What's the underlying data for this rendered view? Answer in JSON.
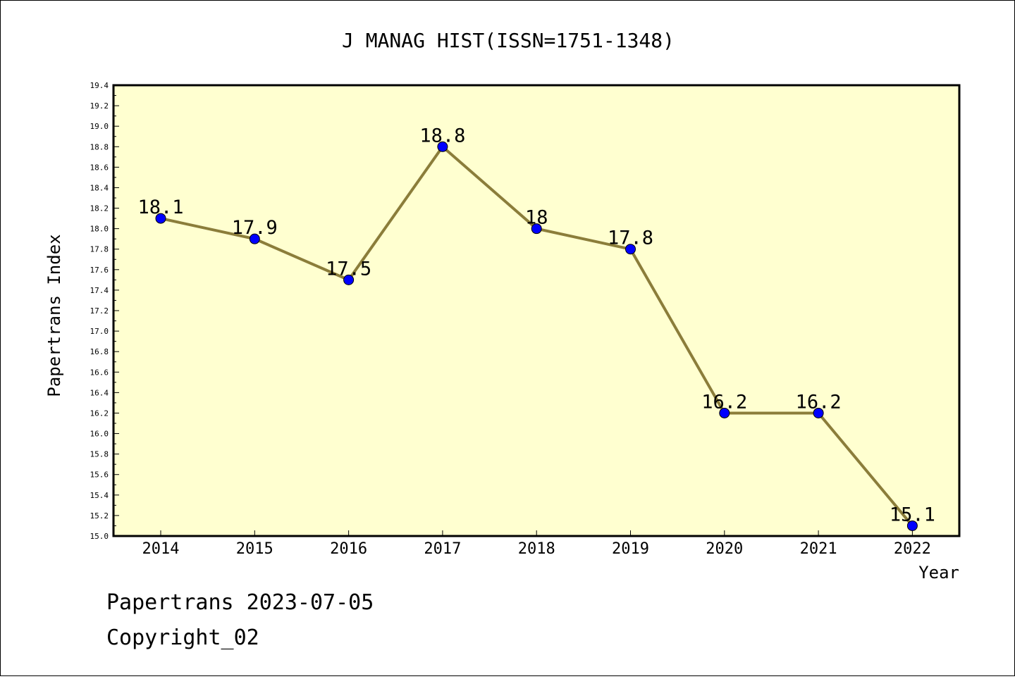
{
  "chart_data": {
    "type": "line",
    "title": "J MANAG HIST(ISSN=1751-1348)",
    "xlabel": "Year",
    "ylabel": "Papertrans Index",
    "categories": [
      "2014",
      "2015",
      "2016",
      "2017",
      "2018",
      "2019",
      "2020",
      "2021",
      "2022"
    ],
    "values": [
      18.1,
      17.9,
      17.5,
      18.8,
      18.0,
      17.8,
      16.2,
      16.2,
      15.1
    ],
    "data_labels": [
      "18.1",
      "17.9",
      "17.5",
      "18.8",
      "18",
      "17.8",
      "16.2",
      "16.2",
      "15.1"
    ],
    "ylim": [
      15.0,
      19.4
    ],
    "yticks": [
      "15.0",
      "15.2",
      "15.4",
      "15.6",
      "15.8",
      "16.0",
      "16.2",
      "16.4",
      "16.6",
      "16.8",
      "17.0",
      "17.2",
      "17.4",
      "17.6",
      "17.8",
      "18.0",
      "18.2",
      "18.4",
      "18.6",
      "18.8",
      "19.0",
      "19.2",
      "19.4"
    ],
    "grid": false,
    "colors": {
      "plot_background": "#ffffd0",
      "line": "#8b7d3a",
      "marker": "#0000ff"
    }
  },
  "footer": {
    "line1": "Papertrans 2023-07-05",
    "line2": "Copyright_02"
  }
}
